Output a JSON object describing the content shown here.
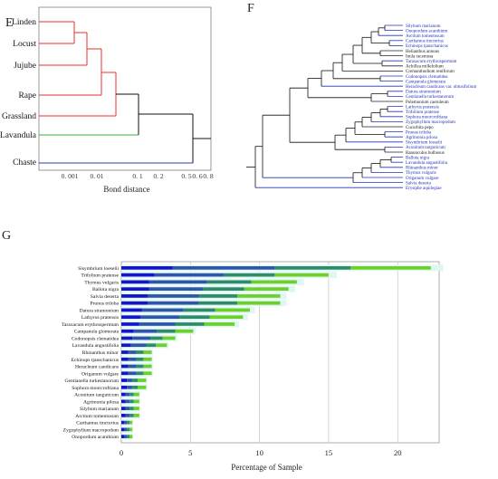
{
  "panelE": {
    "label": "E",
    "xlabel": "Bond distance",
    "ticks": [
      "0. 001",
      "0. 01",
      "0. 1",
      "0. 2",
      "0. 5",
      "0. 6",
      "0. 8"
    ],
    "leaves": [
      "Linden",
      "Locust",
      "Jujube",
      "Rape",
      "Grassland",
      "Lavandula",
      "Chaste"
    ],
    "colors": {
      "red": "#e8322c",
      "green": "#3cb043",
      "blue": "#2a3fb0",
      "black": "#111111"
    }
  },
  "panelF": {
    "label": "F",
    "leaves": [
      {
        "name": "Silybum marianum",
        "color": "#2233bb"
      },
      {
        "name": "Onopordum acanthium",
        "color": "#2233bb"
      },
      {
        "name": "Arctium tomentosum",
        "color": "#2233bb"
      },
      {
        "name": "Carthamus tinctorius",
        "color": "#2233bb"
      },
      {
        "name": "Echinops tjanschanicus",
        "color": "#2233bb"
      },
      {
        "name": "Helianthus annuus",
        "color": "#222222"
      },
      {
        "name": "Inula racemosa",
        "color": "#222222"
      },
      {
        "name": "Taraxacum erythrospermum",
        "color": "#2233bb"
      },
      {
        "name": "Achillea millefolium",
        "color": "#222222"
      },
      {
        "name": "Cremanthodium reniforum",
        "color": "#222222"
      },
      {
        "name": "Codonopsis clematidea",
        "color": "#2233bb"
      },
      {
        "name": "Campanula glomerata",
        "color": "#2233bb"
      },
      {
        "name": "Heracleum candicans var. obtusifolium",
        "color": "#2233bb"
      },
      {
        "name": "Datura stramonium",
        "color": "#2233bb"
      },
      {
        "name": "Gentianella turkestanorum",
        "color": "#2233bb"
      },
      {
        "name": "Polemonium caeruleum",
        "color": "#222222"
      },
      {
        "name": "Lathyrus pratensis",
        "color": "#2233bb"
      },
      {
        "name": "Trifolium pratense",
        "color": "#2233bb"
      },
      {
        "name": "Sophora moorcroftiana",
        "color": "#2233bb"
      },
      {
        "name": "Zygophyllum macropodum",
        "color": "#2233bb"
      },
      {
        "name": "Cucurbita pepo",
        "color": "#222222"
      },
      {
        "name": "Prunus triloba",
        "color": "#2233bb"
      },
      {
        "name": "Agrimonia pilosa",
        "color": "#2233bb"
      },
      {
        "name": "Sisymbrium loeselii",
        "color": "#2233bb"
      },
      {
        "name": "Aconitum tanguticum",
        "color": "#2233bb"
      },
      {
        "name": "Ranunculus bulbosus",
        "color": "#222222"
      },
      {
        "name": "Ballota nigra",
        "color": "#2233bb"
      },
      {
        "name": "Lavandula angustifolia",
        "color": "#2233bb"
      },
      {
        "name": "Rhinanthus minor",
        "color": "#2233bb"
      },
      {
        "name": "Thymus vulgaris",
        "color": "#2233bb"
      },
      {
        "name": "Origanum vulgare",
        "color": "#2233bb"
      },
      {
        "name": "Salvia deserta",
        "color": "#2233bb"
      },
      {
        "name": "Erysiphe aquilegiae",
        "color": "#2233bb"
      }
    ]
  },
  "panelG": {
    "label": "G",
    "xlabel": "Percentage of Sample",
    "xticks": [
      "0",
      "5",
      "10",
      "15",
      "20"
    ],
    "colors": {
      "seg1": "#1414c8",
      "seg2": "#2f55a8",
      "seg3": "#2e8b6a",
      "seg4": "#6ccf2a",
      "band": "#dff7f2"
    },
    "chart_data": {
      "type": "bar",
      "orientation": "horizontal",
      "stacked": true,
      "xlabel": "Percentage of Sample",
      "xlim": [
        0,
        23
      ],
      "categories": [
        "Sisymbrium loeselii",
        "Trifolium pratense",
        "Thymus vulgaris",
        "Ballota nigra",
        "Salvia deserta",
        "Prunus triloba",
        "Datura stramonium",
        "Lathyrus pratensis",
        "Taraxacum erythrospermum",
        "Campanula glomerata",
        "Codonopsis clematidea",
        "Lavandula angustifolia",
        "Rhinanthus minor",
        "Echinops tjanschanicus",
        "Heracleum candicans",
        "Origanum vulgare",
        "Gentianella turkestanorum",
        "Sophora moorcroftiana",
        "Aconitum tanguticum",
        "Agrimonia pilosa",
        "Silybum marianum",
        "Arctium tomentosum",
        "Carthamus tinctorius",
        "Zygophyllum macropodum",
        "Onopordum acanthium"
      ],
      "series": [
        {
          "values": [
            3.7,
            2.4,
            2.0,
            2.0,
            1.9,
            1.9,
            1.5,
            1.4,
            1.3,
            0.9,
            0.8,
            0.7,
            0.5,
            0.5,
            0.5,
            0.5,
            0.4,
            0.4,
            0.3,
            0.3,
            0.3,
            0.3,
            0.2,
            0.2,
            0.2
          ]
        },
        {
          "values": [
            7.4,
            5.0,
            4.2,
            3.9,
            3.7,
            3.7,
            3.0,
            2.8,
            2.6,
            1.7,
            1.3,
            1.1,
            0.6,
            0.6,
            0.6,
            0.6,
            0.4,
            0.4,
            0.3,
            0.3,
            0.3,
            0.3,
            0.2,
            0.2,
            0.2
          ]
        },
        {
          "values": [
            5.5,
            3.7,
            3.2,
            3.0,
            2.8,
            2.8,
            2.3,
            2.2,
            2.1,
            1.3,
            0.9,
            0.7,
            0.5,
            0.5,
            0.5,
            0.5,
            0.4,
            0.4,
            0.3,
            0.3,
            0.3,
            0.3,
            0.2,
            0.2,
            0.2
          ]
        },
        {
          "values": [
            5.8,
            3.9,
            3.3,
            3.2,
            3.1,
            3.1,
            2.5,
            2.4,
            2.2,
            1.3,
            0.9,
            0.8,
            0.6,
            0.6,
            0.6,
            0.6,
            0.6,
            0.6,
            0.4,
            0.4,
            0.4,
            0.4,
            0.2,
            0.2,
            0.2
          ]
        }
      ]
    }
  }
}
